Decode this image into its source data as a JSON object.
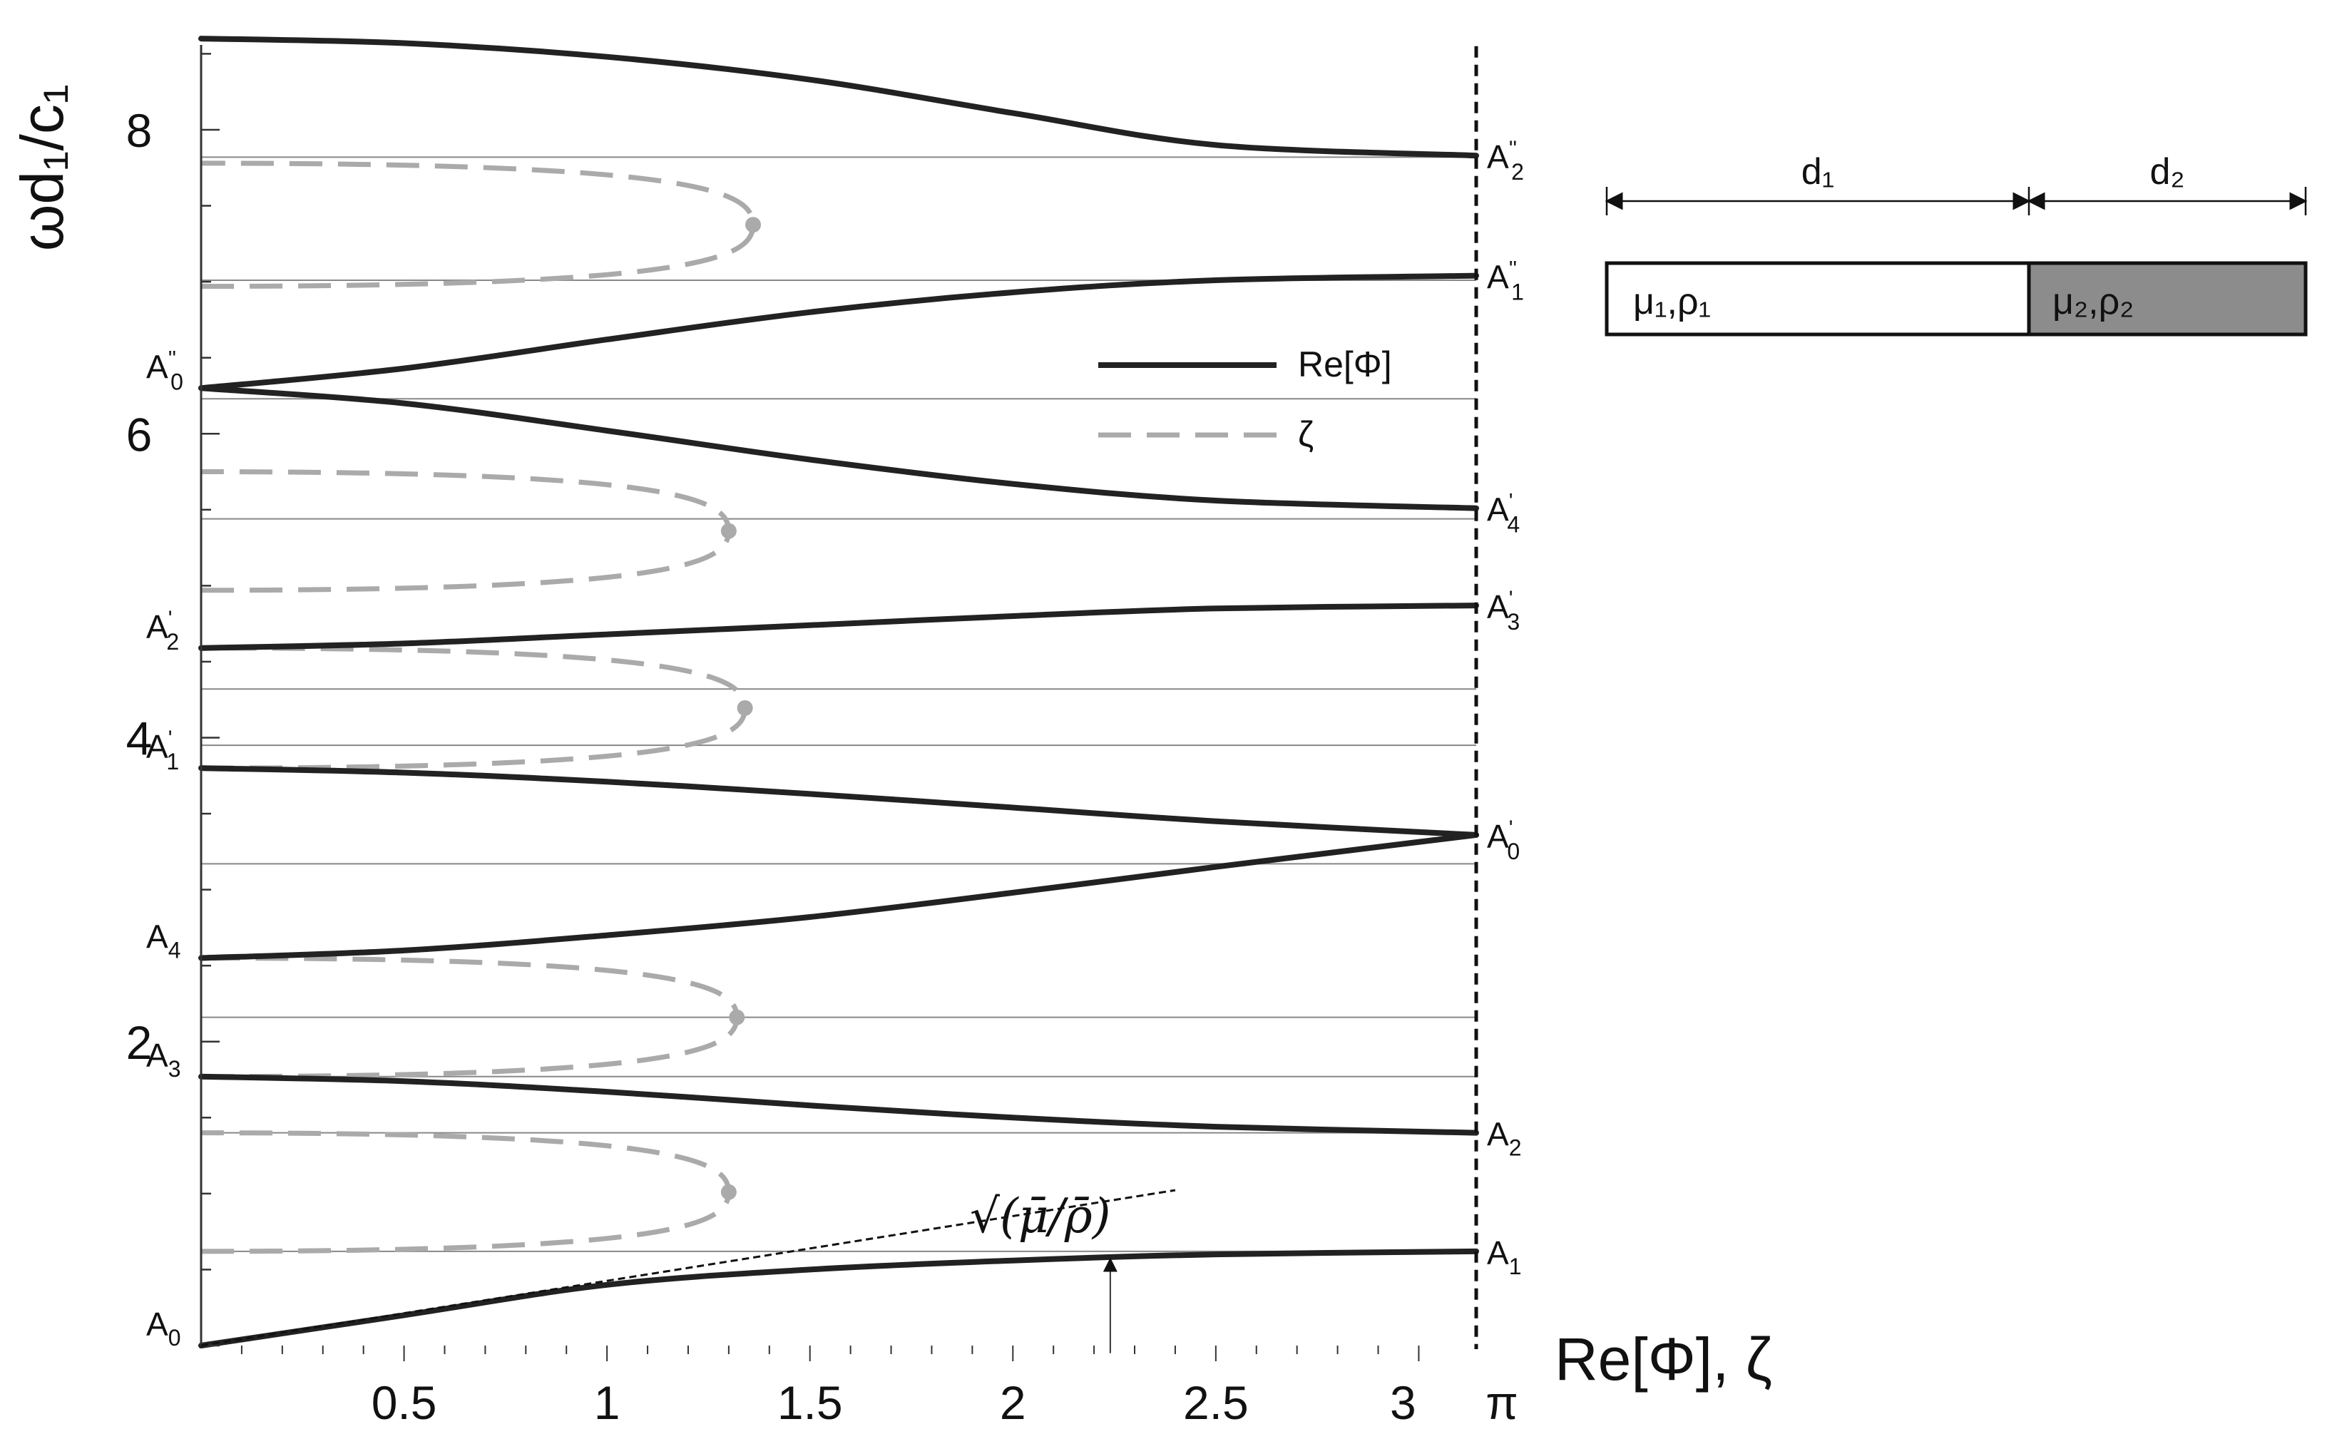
{
  "chart_data": {
    "type": "line",
    "xlabel": "Re[Φ], ζ",
    "ylabel": "ωd₁/c₁",
    "xlim": [
      0,
      3.14159
    ],
    "ylim": [
      0,
      8.7
    ],
    "xticks": [
      {
        "v": 0.5,
        "label": "0.5"
      },
      {
        "v": 1.0,
        "label": "1"
      },
      {
        "v": 1.5,
        "label": "1.5"
      },
      {
        "v": 2.0,
        "label": "2"
      },
      {
        "v": 2.5,
        "label": "2.5"
      },
      {
        "v": 3.0,
        "label": "3"
      },
      {
        "v": 3.14159,
        "label": "π"
      }
    ],
    "yticks": [
      {
        "v": 2,
        "label": "2"
      },
      {
        "v": 4,
        "label": "4"
      },
      {
        "v": 6,
        "label": "6"
      },
      {
        "v": 8,
        "label": "8"
      }
    ],
    "grid": false,
    "legend": {
      "position": "center-right",
      "entries": [
        {
          "name": "Re[Φ]",
          "style": "solid",
          "color": "#222222"
        },
        {
          "name": "ζ",
          "style": "dashed",
          "color": "#aaaaaa"
        }
      ]
    },
    "band_edges": [
      0.62,
      1.4,
      1.77,
      2.16,
      3.17,
      3.95,
      4.32,
      5.44,
      6.23,
      7.01,
      7.82
    ],
    "series": [
      {
        "name": "Re[Φ]",
        "branch": "A0-A1",
        "points": [
          [
            0,
            0.0
          ],
          [
            0.5,
            0.2
          ],
          [
            1.0,
            0.4
          ],
          [
            1.5,
            0.5
          ],
          [
            2.0,
            0.56
          ],
          [
            2.5,
            0.6
          ],
          [
            3.14159,
            0.62
          ]
        ]
      },
      {
        "name": "Re[Φ]",
        "branch": "A3-A2",
        "points": [
          [
            0,
            1.77
          ],
          [
            0.5,
            1.74
          ],
          [
            1.0,
            1.67
          ],
          [
            1.5,
            1.58
          ],
          [
            2.0,
            1.5
          ],
          [
            2.5,
            1.44
          ],
          [
            3.14159,
            1.4
          ]
        ]
      },
      {
        "name": "Re[Φ]",
        "branch": "A4-A'0",
        "points": [
          [
            0,
            2.55
          ],
          [
            0.5,
            2.6
          ],
          [
            1.0,
            2.7
          ],
          [
            1.5,
            2.82
          ],
          [
            2.0,
            2.98
          ],
          [
            2.5,
            3.15
          ],
          [
            3.14159,
            3.36
          ]
        ]
      },
      {
        "name": "Re[Φ]",
        "branch": "A'1-A'0",
        "points": [
          [
            0,
            3.8
          ],
          [
            0.5,
            3.77
          ],
          [
            1.0,
            3.71
          ],
          [
            1.5,
            3.63
          ],
          [
            2.0,
            3.54
          ],
          [
            2.5,
            3.45
          ],
          [
            3.14159,
            3.36
          ]
        ]
      },
      {
        "name": "Re[Φ]",
        "branch": "A'2-A'3",
        "points": [
          [
            0,
            4.59
          ],
          [
            0.5,
            4.62
          ],
          [
            1.0,
            4.68
          ],
          [
            1.5,
            4.74
          ],
          [
            2.0,
            4.8
          ],
          [
            2.5,
            4.85
          ],
          [
            3.14159,
            4.87
          ]
        ]
      },
      {
        "name": "Re[Φ]",
        "branch": "A''0-A'4",
        "points": [
          [
            0,
            6.3
          ],
          [
            0.5,
            6.2
          ],
          [
            1.0,
            6.02
          ],
          [
            1.5,
            5.83
          ],
          [
            2.0,
            5.67
          ],
          [
            2.5,
            5.56
          ],
          [
            3.14159,
            5.51
          ]
        ]
      },
      {
        "name": "Re[Φ]",
        "branch": "A''0-A''1",
        "points": [
          [
            0,
            6.3
          ],
          [
            0.5,
            6.43
          ],
          [
            1.0,
            6.62
          ],
          [
            1.5,
            6.8
          ],
          [
            2.0,
            6.93
          ],
          [
            2.5,
            7.01
          ],
          [
            3.14159,
            7.04
          ]
        ]
      },
      {
        "name": "Re[Φ]",
        "branch": "A''2",
        "points": [
          [
            0,
            8.6
          ],
          [
            0.5,
            8.57
          ],
          [
            1.0,
            8.48
          ],
          [
            1.5,
            8.33
          ],
          [
            2.0,
            8.11
          ],
          [
            2.5,
            7.9
          ],
          [
            3.14159,
            7.83
          ]
        ]
      },
      {
        "name": "ζ",
        "branch": "gap 1",
        "y_low": 0.62,
        "y_high": 1.4,
        "zeta_max": 1.3
      },
      {
        "name": "ζ",
        "branch": "gap 2",
        "y_low": 1.77,
        "y_high": 2.55,
        "zeta_max": 1.32
      },
      {
        "name": "ζ",
        "branch": "gap 3",
        "y_low": 3.8,
        "y_high": 4.59,
        "zeta_max": 1.34
      },
      {
        "name": "ζ",
        "branch": "gap 4",
        "y_low": 4.97,
        "y_high": 5.75,
        "zeta_max": 1.3
      },
      {
        "name": "ζ",
        "branch": "gap 5",
        "y_low": 6.97,
        "y_high": 7.78,
        "zeta_max": 1.36
      }
    ],
    "point_labels": [
      {
        "base": "A",
        "sub": "0",
        "sup": "",
        "side": "left",
        "y": 0.0
      },
      {
        "base": "A",
        "sub": "3",
        "sup": "",
        "side": "left",
        "y": 1.77
      },
      {
        "base": "A",
        "sub": "4",
        "sup": "",
        "side": "left",
        "y": 2.55
      },
      {
        "base": "A",
        "sub": "1",
        "sup": "'",
        "side": "left",
        "y": 3.8
      },
      {
        "base": "A",
        "sub": "2",
        "sup": "'",
        "side": "left",
        "y": 4.59
      },
      {
        "base": "A",
        "sub": "0",
        "sup": "''",
        "side": "left",
        "y": 6.3
      },
      {
        "base": "A",
        "sub": "1",
        "sup": "",
        "side": "right",
        "y": 0.62
      },
      {
        "base": "A",
        "sub": "2",
        "sup": "",
        "side": "right",
        "y": 1.4
      },
      {
        "base": "A",
        "sub": "0",
        "sup": "'",
        "side": "right",
        "y": 3.36
      },
      {
        "base": "A",
        "sub": "3",
        "sup": "'",
        "side": "right",
        "y": 4.87
      },
      {
        "base": "A",
        "sub": "4",
        "sup": "'",
        "side": "right",
        "y": 5.51
      },
      {
        "base": "A",
        "sub": "1",
        "sup": "''",
        "side": "right",
        "y": 7.04
      },
      {
        "base": "A",
        "sub": "2",
        "sup": "''",
        "side": "right",
        "y": 7.83
      }
    ],
    "asymptote": {
      "label": "√(μ̄/ρ̄)",
      "slope": 0.426,
      "x_end": 2.4,
      "arrow_x": 2.24
    }
  },
  "inset": {
    "d1_label": "d₁",
    "d2_label": "d₂",
    "layer1_label": "μ₁,ρ₁",
    "layer2_label": "μ₂,ρ₂",
    "layer2_fill": "#8c8c8c"
  },
  "colors": {
    "solid": "#222222",
    "dashed": "#aaaaaa",
    "grid_band": "#888888"
  }
}
